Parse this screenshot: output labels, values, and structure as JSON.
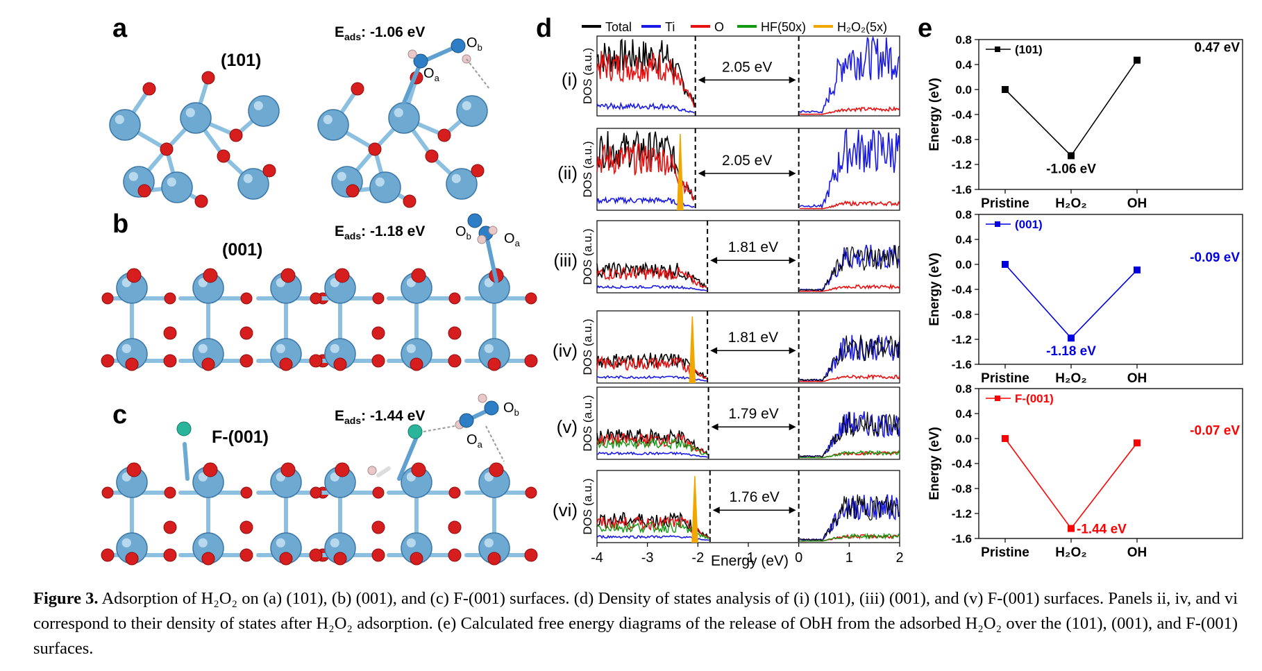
{
  "panels": {
    "a": {
      "letter": "a",
      "left_label": "(101)",
      "eads_prefix": "E",
      "eads_sub": "ads",
      "eads_value": ": -1.06 eV",
      "atom_labels": [
        "O",
        "a",
        "O",
        "b"
      ]
    },
    "b": {
      "letter": "b",
      "left_label": "(001)",
      "eads_prefix": "E",
      "eads_sub": "ads",
      "eads_value": ": -1.18 eV",
      "atom_labels": [
        "O",
        "b",
        "O",
        "a"
      ]
    },
    "c": {
      "letter": "c",
      "left_label": "F-(001)",
      "eads_prefix": "E",
      "eads_sub": "ads",
      "eads_value": ": -1.44 eV",
      "atom_labels": [
        "O",
        "a",
        "O",
        "b"
      ]
    },
    "d": {
      "letter": "d",
      "legend": [
        "Total",
        "Ti",
        "O",
        "HF(50x)",
        "H₂O₂(5x)"
      ],
      "legend_colors": [
        "#000000",
        "#1a1ae6",
        "#e81010",
        "#119a11",
        "#f0a800"
      ],
      "rows": [
        {
          "label": "(i)",
          "gap": "2.05 eV",
          "gap_start": -2.05,
          "gap_end": 0.0
        },
        {
          "label": "(ii)",
          "gap": "2.05 eV",
          "gap_start": -2.05,
          "gap_end": 0.0
        },
        {
          "label": "(iii)",
          "gap": "1.81 eV",
          "gap_start": -1.81,
          "gap_end": 0.0
        },
        {
          "label": "(iv)",
          "gap": "1.81 eV",
          "gap_start": -1.81,
          "gap_end": 0.0
        },
        {
          "label": "(v)",
          "gap": "1.79 eV",
          "gap_start": -1.79,
          "gap_end": 0.0
        },
        {
          "label": "(vi)",
          "gap": "1.76 eV",
          "gap_start": -1.76,
          "gap_end": 0.0
        }
      ],
      "ylabel": "DOS (a.u.)",
      "xlabel": "Energy (eV)",
      "xticks": [
        "-4",
        "-3",
        "-2",
        "-1",
        "0",
        "1",
        "2"
      ]
    },
    "e": {
      "letter": "e"
    }
  },
  "chart_data": [
    {
      "type": "line",
      "title": "",
      "categories": [
        "Pristine",
        "H₂O₂",
        "OH"
      ],
      "series": [
        {
          "name": "(101)",
          "values": [
            0.0,
            -1.06,
            0.47
          ]
        }
      ],
      "point_labels": [
        "",
        "-1.06 eV",
        "0.47 eV"
      ],
      "color": "#000000",
      "ylabel": "Energy (eV)",
      "ylim": [
        -1.6,
        0.8
      ],
      "yticks": [
        "0.8",
        "0.4",
        "0.0",
        "-0.4",
        "-0.8",
        "-1.2",
        "-1.6"
      ],
      "legend": "top-left"
    },
    {
      "type": "line",
      "title": "",
      "categories": [
        "Pristine",
        "H₂O₂",
        "OH"
      ],
      "series": [
        {
          "name": "(001)",
          "values": [
            0.0,
            -1.18,
            -0.09
          ]
        }
      ],
      "point_labels": [
        "",
        "-1.18 eV",
        "-0.09 eV"
      ],
      "color": "#0000e0",
      "ylabel": "Energy (eV)",
      "ylim": [
        -1.6,
        0.8
      ],
      "yticks": [
        "0.8",
        "0.4",
        "0.0",
        "-0.4",
        "-0.8",
        "-1.2",
        "-1.6"
      ],
      "legend": "top-left"
    },
    {
      "type": "line",
      "title": "",
      "categories": [
        "Pristine",
        "H₂O₂",
        "OH"
      ],
      "series": [
        {
          "name": "F-(001)",
          "values": [
            0.0,
            -1.44,
            -0.07
          ]
        }
      ],
      "point_labels": [
        "",
        "-1.44 eV",
        "-0.07 eV"
      ],
      "color": "#ff0000",
      "ylabel": "Energy (eV)",
      "ylim": [
        -1.6,
        0.8
      ],
      "yticks": [
        "0.8",
        "0.4",
        "0.0",
        "-0.4",
        "-0.8",
        "-1.2",
        "-1.6"
      ],
      "legend": "top-left"
    }
  ],
  "caption": {
    "figure_label": "Figure 3.",
    "line1_text": "Adsorption of H₂O₂ on (a) (101), (b) (001), and (c) F-(001) surfaces. (d) Density of states analysis of (i) (101), (iii) (001), and (v) F-(001) surfaces. Panels ii, iv, and vi correspond to their density of states after H₂O₂ adsorption. (e) Calculated free energy diagrams of the release of ObH from the adsorbed H₂O₂ over the (101), (001), and F-(001) surfaces."
  }
}
